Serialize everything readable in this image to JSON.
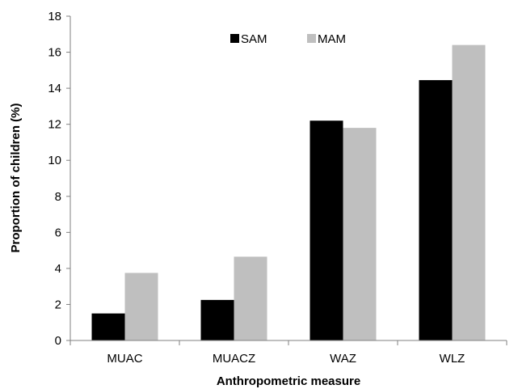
{
  "chart_data": {
    "type": "bar",
    "categories": [
      "MUAC",
      "MUACZ",
      "WAZ",
      "WLZ"
    ],
    "series": [
      {
        "name": "SAM",
        "color": "#000000",
        "values": [
          1.5,
          2.25,
          12.2,
          14.45
        ]
      },
      {
        "name": "MAM",
        "color": "#bfbfbf",
        "values": [
          3.75,
          4.65,
          11.8,
          16.4
        ]
      }
    ],
    "xlabel": "Anthropometric measure",
    "ylabel": "Proportion of children (%)",
    "ylim": [
      0,
      18
    ],
    "yticks": [
      "0",
      "2",
      "4",
      "6",
      "8",
      "10",
      "12",
      "14",
      "16",
      "18"
    ],
    "grid": false,
    "legend_position": "top-center"
  }
}
